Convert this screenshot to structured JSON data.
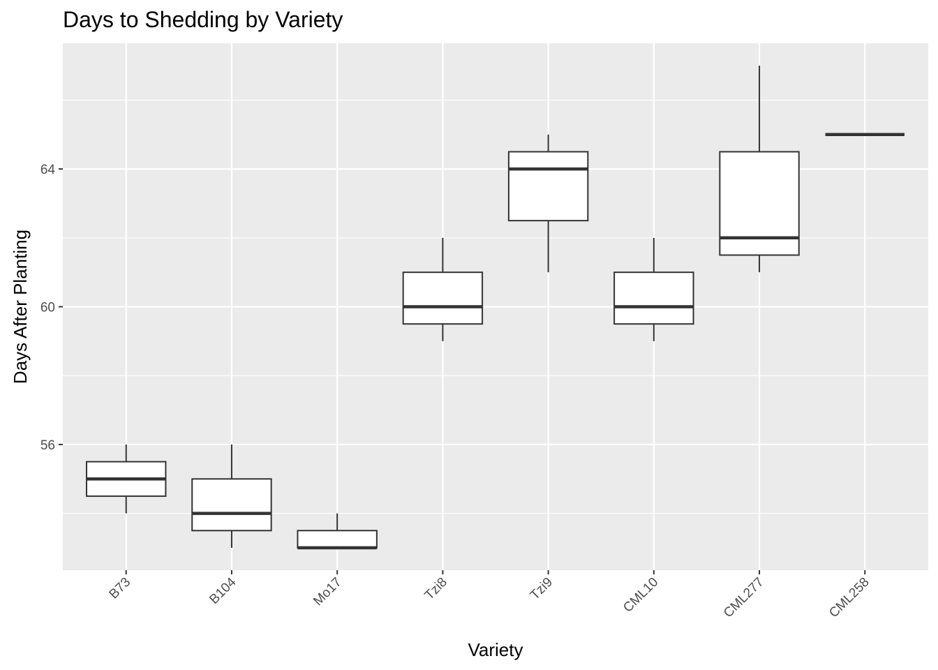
{
  "chart_data": {
    "type": "boxplot",
    "title": "Days to Shedding by Variety",
    "xlabel": "Variety",
    "ylabel": "Days After Planting",
    "categories": [
      "B73",
      "B104",
      "Mo17",
      "Tzi8",
      "Tzi9",
      "CML10",
      "CML277",
      "CML258"
    ],
    "yticks": [
      56,
      60,
      64
    ],
    "ylim": [
      52.35,
      67.65
    ],
    "grid": true,
    "boxes": [
      {
        "category": "B73",
        "whisker_low": 54,
        "q1": 54.5,
        "median": 55,
        "q3": 55.5,
        "whisker_high": 56
      },
      {
        "category": "B104",
        "whisker_low": 53,
        "q1": 53.5,
        "median": 54,
        "q3": 55,
        "whisker_high": 56
      },
      {
        "category": "Mo17",
        "whisker_low": 53,
        "q1": 53,
        "median": 53,
        "q3": 53.5,
        "whisker_high": 54
      },
      {
        "category": "Tzi8",
        "whisker_low": 59,
        "q1": 59.5,
        "median": 60,
        "q3": 61,
        "whisker_high": 62
      },
      {
        "category": "Tzi9",
        "whisker_low": 61,
        "q1": 62.5,
        "median": 64,
        "q3": 64.5,
        "whisker_high": 65
      },
      {
        "category": "CML10",
        "whisker_low": 59,
        "q1": 59.5,
        "median": 60,
        "q3": 61,
        "whisker_high": 62
      },
      {
        "category": "CML277",
        "whisker_low": 61,
        "q1": 61.5,
        "median": 62,
        "q3": 64.5,
        "whisker_high": 67
      },
      {
        "category": "CML258",
        "whisker_low": 65,
        "q1": 65,
        "median": 65,
        "q3": 65,
        "whisker_high": 65
      }
    ],
    "colors": {
      "panel_background": "#ebebeb",
      "grid_major": "#ffffff",
      "box_fill": "#ffffff",
      "box_stroke": "#333333",
      "tick_label": "#4d4d4d"
    }
  }
}
